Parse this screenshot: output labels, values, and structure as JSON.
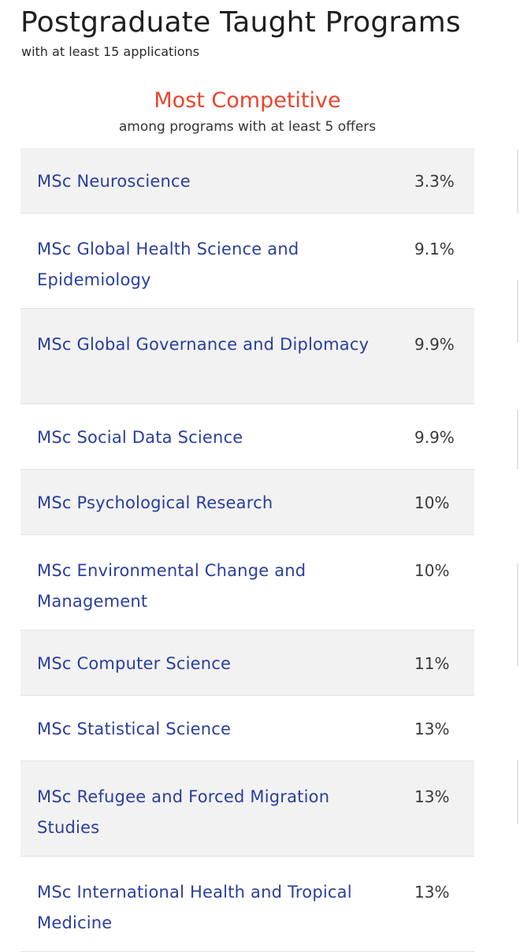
{
  "header": {
    "title": "Postgraduate Taught Programs",
    "subtitle": "with at least 15 applications"
  },
  "section": {
    "title": "Most Competitive",
    "subtitle": "among programs with at least 5 offers",
    "title_color": "#e8452f",
    "link_color": "#2a3e9e"
  },
  "programs": [
    {
      "name": "MSc Neuroscience",
      "rate": "3.3%"
    },
    {
      "name": "MSc Global Health Science and Epidemiology",
      "rate": "9.1%"
    },
    {
      "name": "MSc Global Governance and Diplomacy",
      "rate": "9.9%"
    },
    {
      "name": "MSc Social Data Science",
      "rate": "9.9%"
    },
    {
      "name": "MSc Psychological Research",
      "rate": "10%"
    },
    {
      "name": "MSc Environmental Change and Management",
      "rate": "10%"
    },
    {
      "name": "MSc Computer Science",
      "rate": "11%"
    },
    {
      "name": "MSc Statistical Science",
      "rate": "13%"
    },
    {
      "name": "MSc Refugee and Forced Migration Studies",
      "rate": "13%"
    },
    {
      "name": "MSc International Health and Tropical Medicine",
      "rate": "13%"
    }
  ]
}
